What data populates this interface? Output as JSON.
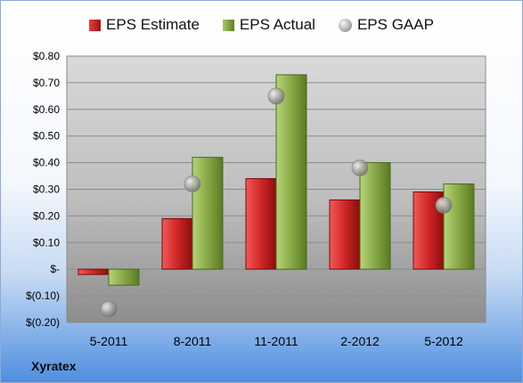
{
  "company": "Xyratex",
  "legend": {
    "estimate": "EPS Estimate",
    "actual": "EPS Actual",
    "gaap": "EPS GAAP"
  },
  "chart_data": {
    "type": "bar",
    "title": "",
    "xlabel": "",
    "ylabel": "",
    "categories": [
      "5-2011",
      "8-2011",
      "11-2011",
      "2-2012",
      "5-2012"
    ],
    "series": [
      {
        "name": "EPS Estimate",
        "kind": "bar",
        "color": "#c41c1c",
        "values": [
          -0.02,
          0.19,
          0.34,
          0.26,
          0.29
        ]
      },
      {
        "name": "EPS Actual",
        "kind": "bar",
        "color": "#8aac48",
        "values": [
          -0.06,
          0.42,
          0.73,
          0.4,
          0.32
        ]
      },
      {
        "name": "EPS GAAP",
        "kind": "marker",
        "color": "#a0a0a0",
        "values": [
          -0.15,
          0.32,
          0.65,
          0.38,
          0.24
        ]
      }
    ],
    "ylim": [
      -0.2,
      0.8
    ],
    "yticks": [
      -0.2,
      -0.1,
      0.0,
      0.1,
      0.2,
      0.3,
      0.4,
      0.5,
      0.6,
      0.7,
      0.8
    ],
    "ytick_labels": [
      "$(0.20)",
      "$(0.10)",
      "$-",
      "$0.10",
      "$0.20",
      "$0.30",
      "$0.40",
      "$0.50",
      "$0.60",
      "$0.70",
      "$0.80"
    ],
    "grid": true,
    "legend_position": "top"
  }
}
